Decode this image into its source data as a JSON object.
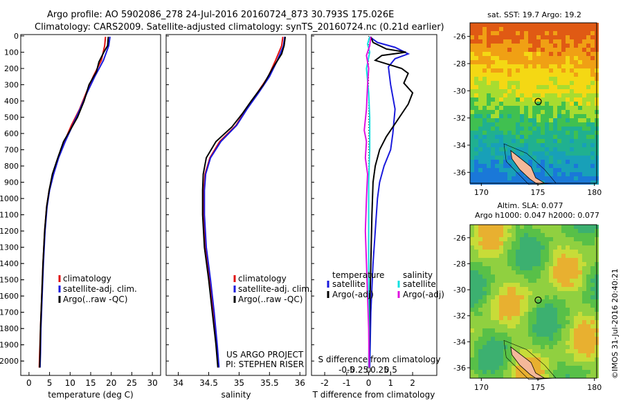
{
  "header": {
    "line1": "Argo profile: AO 5902086_278 24-Jul-2016 20160724_873 30.793S 175.026E",
    "line2": "Climatology: CARS2009. Satellite-adjusted climatology: synTS_20160724.nc (0.21d earlier)"
  },
  "colors": {
    "clim": "#e01010",
    "sat": "#1a1adc",
    "argo": "#000000",
    "cyan": "#10e0e0",
    "magenta": "#e010e0"
  },
  "chart_data": [
    {
      "type": "line",
      "panel": "temperature",
      "xlabel": "temperature (deg C)",
      "xlim": [
        -2,
        32
      ],
      "ylim": [
        2080,
        0
      ],
      "xticks": [
        0,
        5,
        10,
        15,
        20,
        25,
        30
      ],
      "yticks": [
        0,
        100,
        200,
        300,
        400,
        500,
        600,
        700,
        800,
        900,
        1000,
        1100,
        1200,
        1300,
        1400,
        1500,
        1600,
        1700,
        1800,
        1900,
        2000
      ],
      "legend": [
        "climatology",
        "satellite-adj. clim.",
        "Argo(..raw -QC)"
      ],
      "series": [
        {
          "name": "climatology",
          "color": "clim",
          "points": [
            [
              18.6,
              5
            ],
            [
              18.4,
              60
            ],
            [
              17.6,
              150
            ],
            [
              15.6,
              250
            ],
            [
              13.9,
              350
            ],
            [
              12.3,
              450
            ],
            [
              10.3,
              550
            ],
            [
              8.6,
              650
            ],
            [
              7.1,
              750
            ],
            [
              5.9,
              850
            ],
            [
              4.9,
              950
            ],
            [
              4.3,
              1050
            ],
            [
              3.8,
              1200
            ],
            [
              3.4,
              1400
            ],
            [
              3.1,
              1600
            ],
            [
              2.8,
              1800
            ],
            [
              2.6,
              1950
            ],
            [
              2.5,
              2040
            ]
          ]
        },
        {
          "name": "satellite-adj. clim.",
          "color": "sat",
          "points": [
            [
              19.7,
              5
            ],
            [
              19.4,
              60
            ],
            [
              18.1,
              150
            ],
            [
              16.0,
              250
            ],
            [
              14.1,
              350
            ],
            [
              12.4,
              450
            ],
            [
              10.6,
              550
            ],
            [
              8.8,
              650
            ],
            [
              7.2,
              750
            ],
            [
              6.0,
              850
            ],
            [
              5.0,
              950
            ],
            [
              4.4,
              1050
            ],
            [
              3.9,
              1200
            ],
            [
              3.5,
              1400
            ],
            [
              3.2,
              1600
            ],
            [
              2.9,
              1800
            ],
            [
              2.8,
              1950
            ],
            [
              2.7,
              2040
            ]
          ]
        },
        {
          "name": "Argo(..raw -QC)",
          "color": "argo",
          "points": [
            [
              19.3,
              5
            ],
            [
              19.1,
              60
            ],
            [
              18.2,
              100
            ],
            [
              17.0,
              160
            ],
            [
              16.4,
              220
            ],
            [
              14.6,
              300
            ],
            [
              13.4,
              400
            ],
            [
              11.8,
              500
            ],
            [
              10.0,
              580
            ],
            [
              8.4,
              650
            ],
            [
              7.0,
              750
            ],
            [
              5.7,
              850
            ],
            [
              4.9,
              950
            ],
            [
              4.3,
              1050
            ],
            [
              3.8,
              1200
            ],
            [
              3.4,
              1400
            ],
            [
              3.1,
              1600
            ],
            [
              2.8,
              1800
            ],
            [
              2.7,
              1950
            ],
            [
              2.6,
              2040
            ]
          ]
        }
      ]
    },
    {
      "type": "line",
      "panel": "salinity",
      "xlabel": "salinity",
      "xlim": [
        33.8,
        36.1
      ],
      "ylim": [
        2080,
        0
      ],
      "xticks": [
        34,
        34.5,
        35,
        35.5,
        36
      ],
      "legend": [
        "climatology",
        "satellite-adj. clim.",
        "Argo(..raw -QC)"
      ],
      "series": [
        {
          "name": "climatology",
          "color": "clim",
          "points": [
            [
              35.72,
              5
            ],
            [
              35.7,
              60
            ],
            [
              35.6,
              150
            ],
            [
              35.48,
              250
            ],
            [
              35.3,
              350
            ],
            [
              35.12,
              450
            ],
            [
              34.95,
              550
            ],
            [
              34.68,
              650
            ],
            [
              34.52,
              750
            ],
            [
              34.44,
              850
            ],
            [
              34.42,
              950
            ],
            [
              34.42,
              1100
            ],
            [
              34.45,
              1300
            ],
            [
              34.52,
              1500
            ],
            [
              34.58,
              1700
            ],
            [
              34.63,
              1900
            ],
            [
              34.66,
              2040
            ]
          ]
        },
        {
          "name": "satellite-adj. clim.",
          "color": "sat",
          "points": [
            [
              35.75,
              5
            ],
            [
              35.73,
              60
            ],
            [
              35.63,
              150
            ],
            [
              35.5,
              250
            ],
            [
              35.32,
              350
            ],
            [
              35.13,
              450
            ],
            [
              34.96,
              550
            ],
            [
              34.7,
              650
            ],
            [
              34.53,
              750
            ],
            [
              34.45,
              850
            ],
            [
              34.43,
              950
            ],
            [
              34.43,
              1100
            ],
            [
              34.46,
              1300
            ],
            [
              34.53,
              1500
            ],
            [
              34.59,
              1700
            ],
            [
              34.64,
              1900
            ],
            [
              34.67,
              2040
            ]
          ]
        },
        {
          "name": "Argo(..raw -QC)",
          "color": "argo",
          "points": [
            [
              35.76,
              5
            ],
            [
              35.74,
              60
            ],
            [
              35.7,
              110
            ],
            [
              35.55,
              200
            ],
            [
              35.4,
              300
            ],
            [
              35.2,
              400
            ],
            [
              35.05,
              480
            ],
            [
              34.88,
              560
            ],
            [
              34.62,
              650
            ],
            [
              34.46,
              750
            ],
            [
              34.41,
              850
            ],
            [
              34.4,
              950
            ],
            [
              34.4,
              1100
            ],
            [
              34.43,
              1300
            ],
            [
              34.5,
              1500
            ],
            [
              34.56,
              1700
            ],
            [
              34.62,
              1900
            ],
            [
              34.65,
              2040
            ]
          ]
        }
      ]
    },
    {
      "type": "line",
      "panel": "difference",
      "xlabel": "T difference from climatology",
      "xlabel2": "S difference from climatology",
      "xlim": [
        -2.6,
        3.1
      ],
      "ylim": [
        2080,
        0
      ],
      "xticks_T": [
        -2,
        -1,
        0,
        1,
        2
      ],
      "xticks_S": [
        "-0.5",
        "-0.25",
        "0",
        "0.25",
        "0.5"
      ],
      "legend_temperature": {
        "title": "temperature",
        "items": [
          "satellite",
          "Argo(-adj)"
        ]
      },
      "legend_salinity": {
        "title": "salinity",
        "items": [
          "satellite",
          "Argo(-adj)"
        ]
      },
      "series": [
        {
          "name": "temperature satellite",
          "color": "sat",
          "points": [
            [
              0.05,
              5
            ],
            [
              0.4,
              40
            ],
            [
              1.2,
              70
            ],
            [
              1.8,
              110
            ],
            [
              1.2,
              140
            ],
            [
              0.9,
              190
            ],
            [
              1.0,
              300
            ],
            [
              1.2,
              450
            ],
            [
              1.1,
              600
            ],
            [
              1.0,
              700
            ],
            [
              0.7,
              800
            ],
            [
              0.5,
              900
            ],
            [
              0.4,
              1000
            ],
            [
              0.3,
              1200
            ],
            [
              0.2,
              1400
            ],
            [
              0.1,
              1700
            ],
            [
              0.05,
              2040
            ]
          ]
        },
        {
          "name": "temperature Argo(-adj)",
          "color": "argo",
          "points": [
            [
              0.1,
              5
            ],
            [
              0.2,
              40
            ],
            [
              0.8,
              80
            ],
            [
              1.7,
              100
            ],
            [
              0.6,
              120
            ],
            [
              0.3,
              150
            ],
            [
              1.5,
              200
            ],
            [
              1.8,
              230
            ],
            [
              1.6,
              290
            ],
            [
              2.0,
              350
            ],
            [
              1.8,
              420
            ],
            [
              1.2,
              540
            ],
            [
              0.8,
              620
            ],
            [
              0.5,
              700
            ],
            [
              0.3,
              800
            ],
            [
              0.2,
              900
            ],
            [
              0.15,
              1100
            ],
            [
              0.1,
              1400
            ],
            [
              0.05,
              1700
            ],
            [
              0.0,
              2040
            ]
          ]
        },
        {
          "name": "salinity satellite",
          "color": "cyan",
          "points": [
            [
              0.05,
              5
            ],
            [
              -0.05,
              50
            ],
            [
              0.05,
              100
            ],
            [
              -0.1,
              200
            ],
            [
              0.0,
              350
            ],
            [
              0.05,
              500
            ],
            [
              0.05,
              700
            ],
            [
              0.0,
              900
            ],
            [
              0.0,
              1200
            ],
            [
              0.0,
              1500
            ],
            [
              0.02,
              1800
            ],
            [
              0.0,
              2040
            ]
          ]
        },
        {
          "name": "salinity Argo(-adj)",
          "color": "magenta",
          "points": [
            [
              0.1,
              5
            ],
            [
              0.05,
              60
            ],
            [
              -0.1,
              120
            ],
            [
              0.0,
              200
            ],
            [
              -0.05,
              300
            ],
            [
              -0.1,
              450
            ],
            [
              -0.2,
              580
            ],
            [
              -0.1,
              650
            ],
            [
              -0.15,
              750
            ],
            [
              -0.05,
              850
            ],
            [
              -0.1,
              1000
            ],
            [
              -0.15,
              1200
            ],
            [
              -0.1,
              1400
            ],
            [
              -0.05,
              1600
            ],
            [
              0.0,
              1800
            ],
            [
              0.02,
              2040
            ]
          ]
        }
      ]
    },
    {
      "type": "heatmap",
      "panel": "sst-map",
      "title": "sat. SST: 19.7 Argo: 19.2",
      "xlim": [
        169,
        180.2
      ],
      "ylim": [
        -36.8,
        -25
      ],
      "xticks": [
        170,
        175,
        180
      ],
      "yticks": [
        -26,
        -28,
        -30,
        -32,
        -34,
        -36
      ],
      "argo_position": [
        175.026,
        -30.793
      ]
    },
    {
      "type": "heatmap",
      "panel": "sla-map",
      "title": "Altim. SLA: 0.077",
      "subtitle": "Argo h1000: 0.047 h2000: 0.077",
      "xlim": [
        169,
        180.2
      ],
      "ylim": [
        -36.8,
        -25
      ],
      "xticks": [
        170,
        175,
        180
      ],
      "yticks": [
        -26,
        -28,
        -30,
        -32,
        -34,
        -36
      ],
      "argo_position": [
        175.026,
        -30.793
      ]
    }
  ],
  "annotations": {
    "project": "US ARGO PROJECT",
    "pi": "PI: STEPHEN RISER",
    "stamp": "©IMOS 31-Jul-2016 20:40:21"
  }
}
